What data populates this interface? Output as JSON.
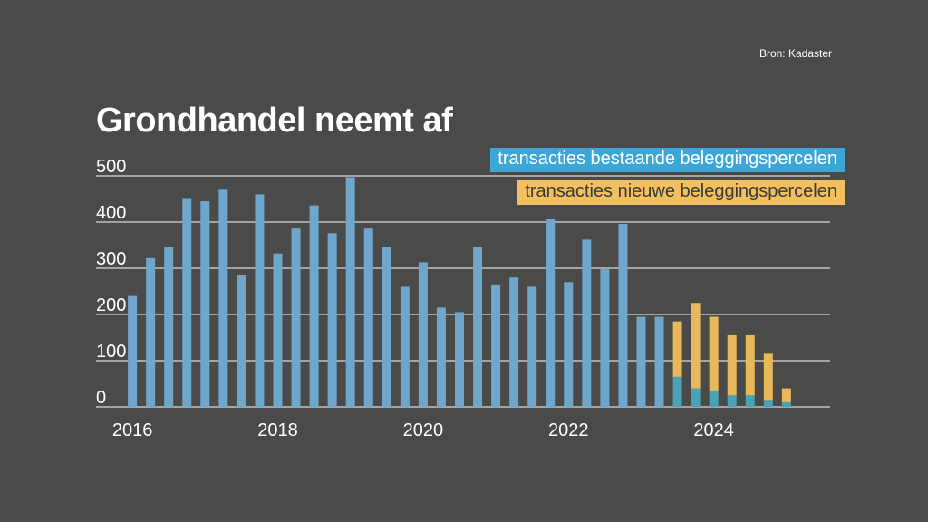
{
  "source": "Bron: Kadaster",
  "chart_data": {
    "type": "bar",
    "stacked": true,
    "title": "Grondhandel neemt af",
    "ylim": [
      0,
      500
    ],
    "y_ticks": [
      0,
      100,
      200,
      300,
      400,
      500
    ],
    "x_ticks": [
      "2016",
      "2018",
      "2020",
      "2022",
      "2024"
    ],
    "x_range": [
      2015.5,
      2025.6
    ],
    "grid": true,
    "legend_position": "top-right",
    "series": [
      {
        "name": "transacties bestaande beleggingspercelen",
        "color": "#6fa6cc",
        "legend_color": "#3ea6d6",
        "overlap_color": "#4aa3b4",
        "points": [
          [
            2016.0,
            240
          ],
          [
            2016.25,
            322
          ],
          [
            2016.5,
            346
          ],
          [
            2016.75,
            450
          ],
          [
            2017.0,
            445
          ],
          [
            2017.25,
            470
          ],
          [
            2017.5,
            285
          ],
          [
            2017.75,
            460
          ],
          [
            2018.0,
            332
          ],
          [
            2018.25,
            386
          ],
          [
            2018.5,
            436
          ],
          [
            2018.75,
            376
          ],
          [
            2019.0,
            497
          ],
          [
            2019.25,
            386
          ],
          [
            2019.5,
            346
          ],
          [
            2019.75,
            260
          ],
          [
            2020.0,
            313
          ],
          [
            2020.25,
            215
          ],
          [
            2020.5,
            205
          ],
          [
            2020.75,
            346
          ],
          [
            2021.0,
            265
          ],
          [
            2021.25,
            280
          ],
          [
            2021.5,
            260
          ],
          [
            2021.75,
            406
          ],
          [
            2022.0,
            270
          ],
          [
            2022.25,
            362
          ],
          [
            2022.5,
            298
          ],
          [
            2022.75,
            396
          ],
          [
            2023.0,
            195
          ],
          [
            2023.25,
            195
          ],
          [
            2023.5,
            65
          ],
          [
            2023.75,
            40
          ],
          [
            2024.0,
            35
          ],
          [
            2024.25,
            25
          ],
          [
            2024.5,
            25
          ],
          [
            2024.75,
            15
          ],
          [
            2025.0,
            10
          ]
        ]
      },
      {
        "name": "transacties nieuwe beleggingspercelen",
        "color": "#e8b95a",
        "legend_color": "#f2c061",
        "points": [
          [
            2023.5,
            120
          ],
          [
            2023.75,
            185
          ],
          [
            2024.0,
            160
          ],
          [
            2024.25,
            130
          ],
          [
            2024.5,
            130
          ],
          [
            2024.75,
            100
          ],
          [
            2025.0,
            30
          ]
        ]
      }
    ]
  }
}
